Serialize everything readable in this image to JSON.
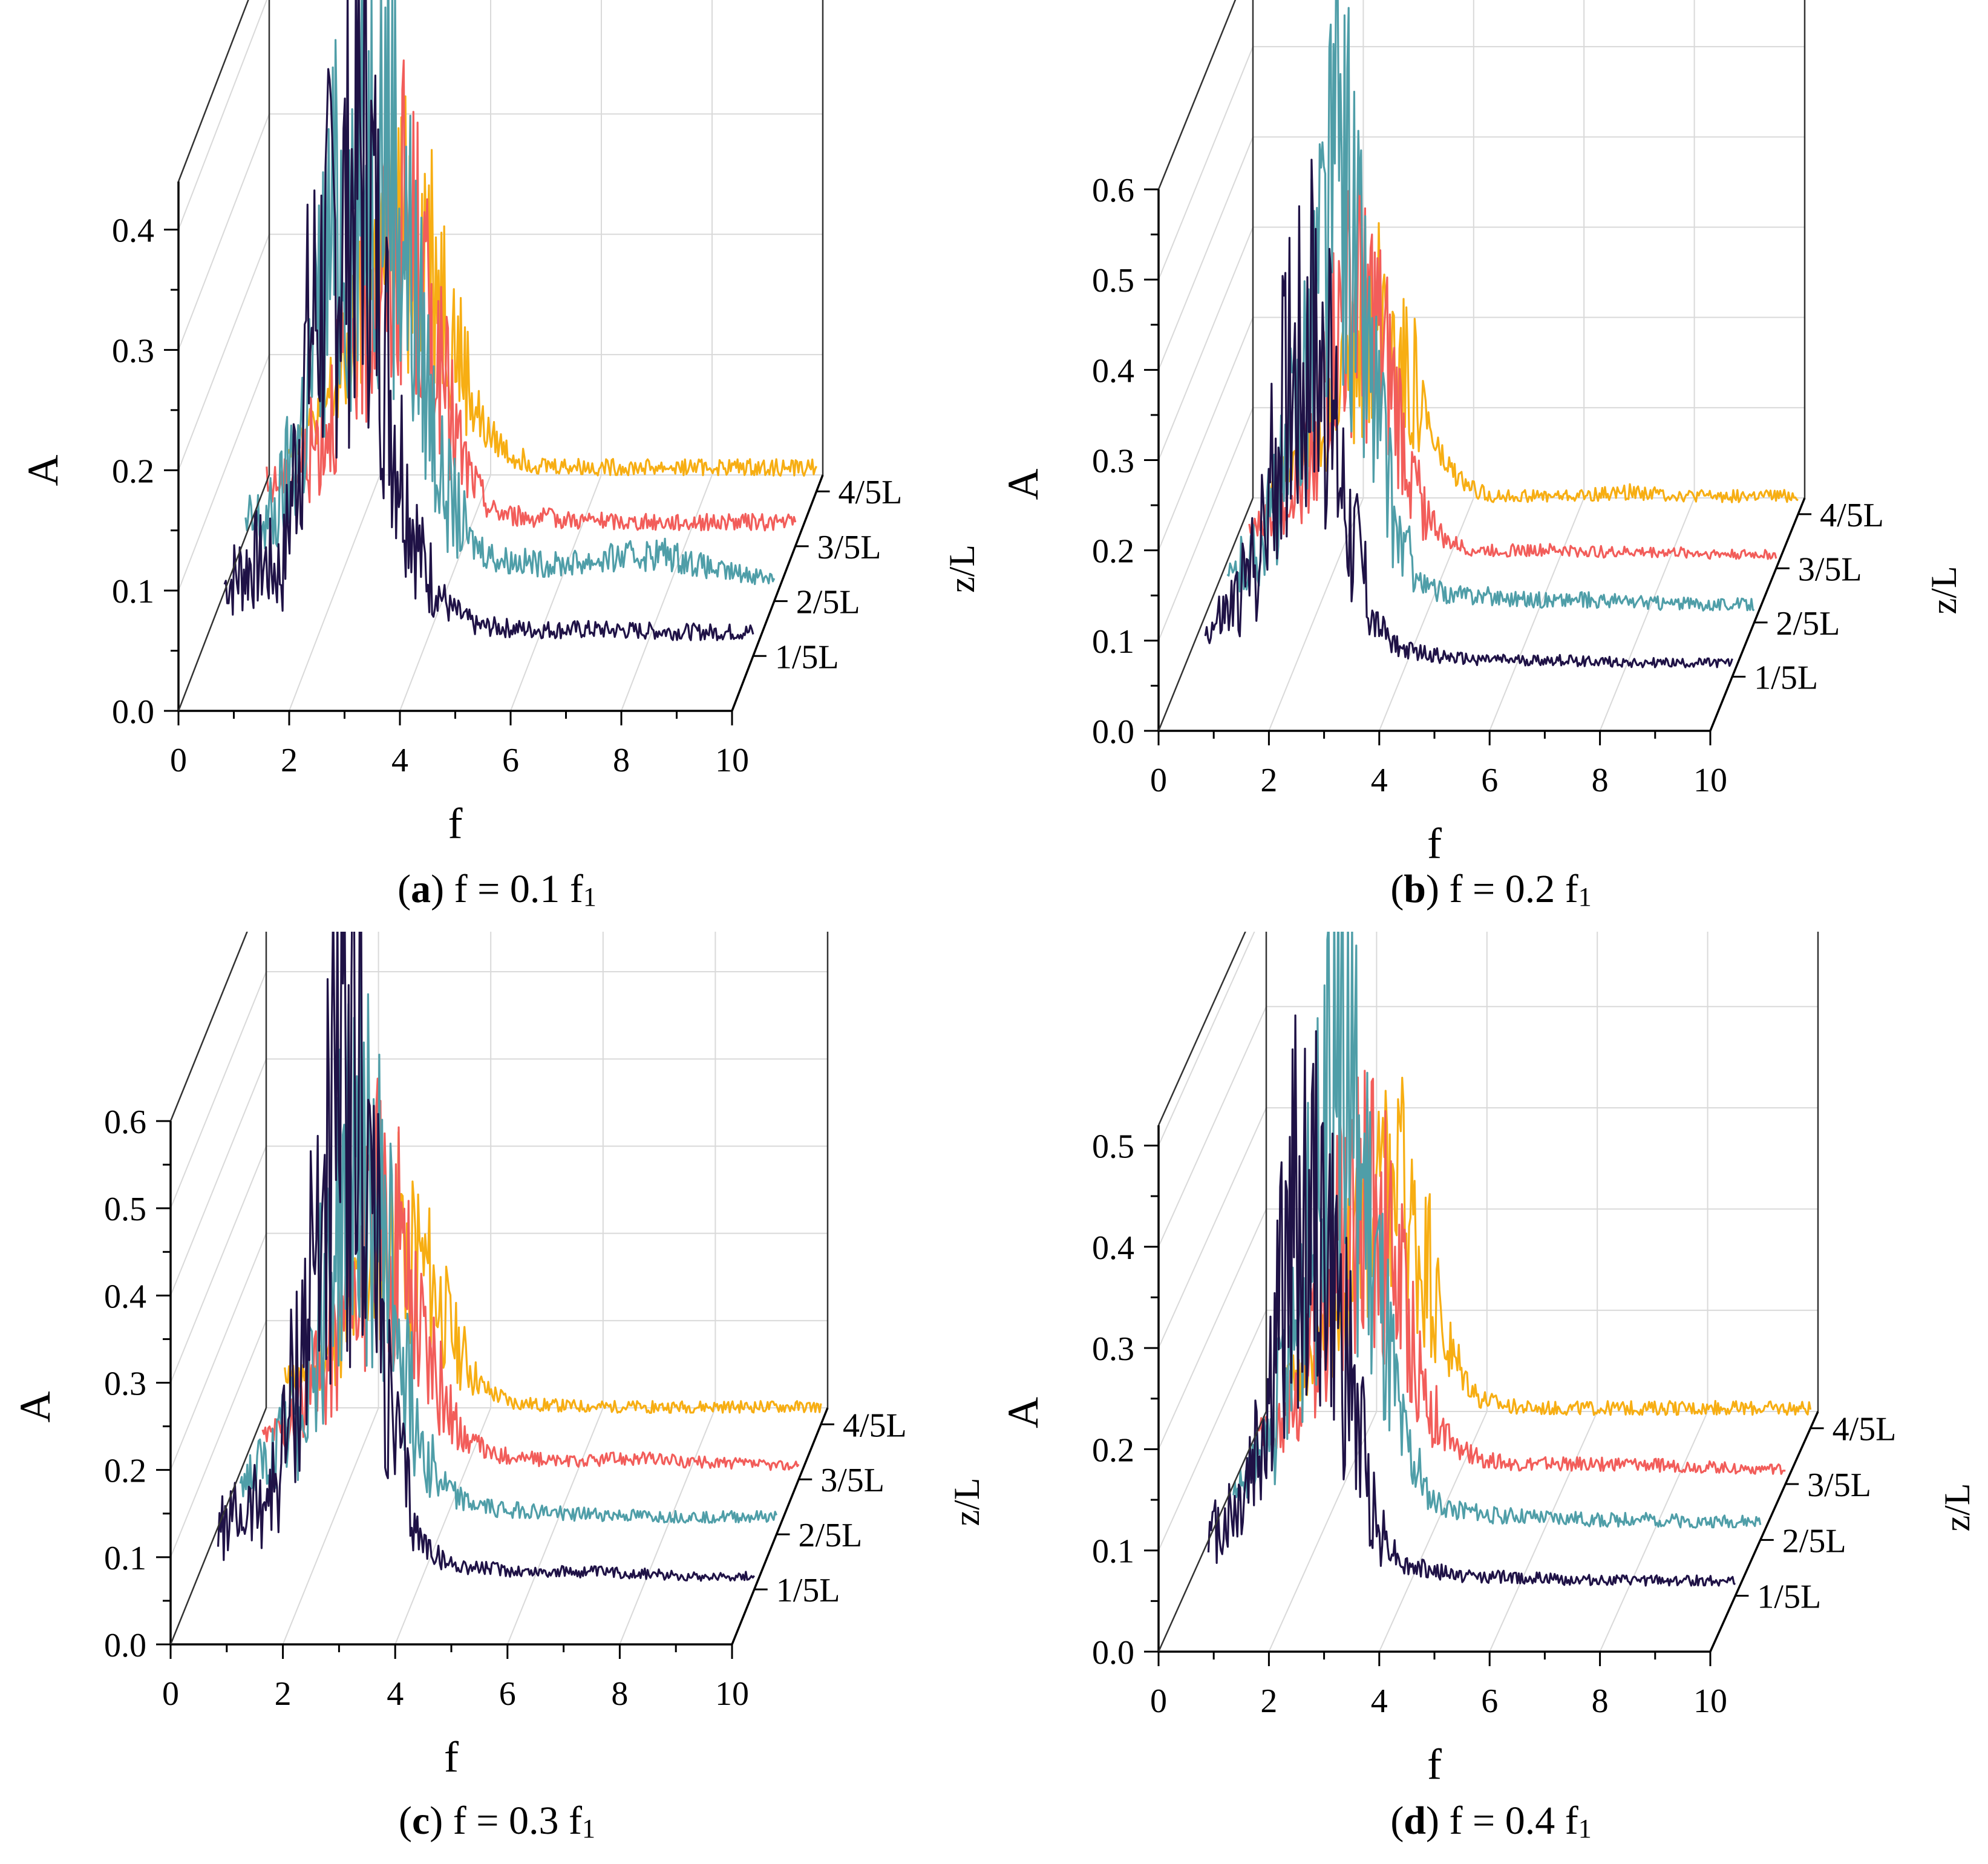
{
  "figure": {
    "panels": [
      {
        "letter": "a",
        "text": "f = 0.1 f",
        "sub": "1"
      },
      {
        "letter": "b",
        "text": "f = 0.2 f",
        "sub": "1"
      },
      {
        "letter": "c",
        "text": "f = 0.3 f",
        "sub": "1"
      },
      {
        "letter": "d",
        "text": "f = 0.4 f",
        "sub": "1"
      }
    ]
  },
  "chart_data": [
    {
      "type": "line",
      "title": "(a) f = 0.1 f1",
      "xlabel": "f",
      "ylabel": "A",
      "zlabel": "z/L",
      "xlim": [
        0,
        10
      ],
      "ylim": [
        0,
        0.44
      ],
      "x_ticks": [
        "0",
        "2",
        "4",
        "6",
        "8",
        "10"
      ],
      "y_ticks": [
        "0.0",
        "0.1",
        "0.2",
        "0.3",
        "0.4"
      ],
      "y_tick_values": [
        0,
        0.1,
        0.2,
        0.3,
        0.4
      ],
      "series": [
        {
          "name": "1/5L",
          "color": "#1f1246",
          "x": [
            0.5,
            1.0,
            1.5,
            2.0,
            2.5,
            3.0,
            3.5,
            4.0,
            4.5,
            5,
            6,
            7,
            8,
            9,
            10
          ],
          "values": [
            0.06,
            0.08,
            0.07,
            0.27,
            0.35,
            0.42,
            0.2,
            0.08,
            0.04,
            0.025,
            0.022,
            0.022,
            0.021,
            0.02,
            0.02
          ]
        },
        {
          "name": "2/5L",
          "color": "#4f9ea8",
          "x": [
            0.5,
            1.0,
            1.5,
            2.0,
            2.5,
            3.0,
            3.5,
            4.0,
            4.5,
            5,
            6,
            7,
            8,
            9,
            10
          ],
          "values": [
            0.06,
            0.07,
            0.15,
            0.3,
            0.35,
            0.41,
            0.25,
            0.1,
            0.05,
            0.035,
            0.03,
            0.035,
            0.04,
            0.025,
            0.02
          ]
        },
        {
          "name": "3/5L",
          "color": "#f25d5a",
          "x": [
            0.5,
            1.0,
            1.5,
            2.0,
            2.5,
            3.0,
            3.5,
            4.0,
            4.5,
            5,
            6,
            7,
            8,
            9,
            10
          ],
          "values": [
            0.05,
            0.06,
            0.1,
            0.18,
            0.24,
            0.27,
            0.16,
            0.07,
            0.03,
            0.025,
            0.022,
            0.02,
            0.02,
            0.02,
            0.02
          ]
        },
        {
          "name": "4/5L",
          "color": "#f7ae13",
          "x": [
            0.5,
            1.0,
            1.5,
            2.0,
            2.5,
            3.0,
            3.5,
            4.0,
            4.5,
            5,
            6,
            7,
            8,
            9,
            10
          ],
          "values": [
            0.04,
            0.06,
            0.1,
            0.17,
            0.22,
            0.21,
            0.12,
            0.05,
            0.03,
            0.022,
            0.02,
            0.02,
            0.02,
            0.02,
            0.02
          ]
        }
      ]
    },
    {
      "type": "line",
      "title": "(b) f = 0.2 f1",
      "xlabel": "f",
      "ylabel": "A",
      "zlabel": "z/L",
      "xlim": [
        0,
        10
      ],
      "ylim": [
        0,
        0.6
      ],
      "x_ticks": [
        "0",
        "2",
        "4",
        "6",
        "8",
        "10"
      ],
      "y_ticks": [
        "0.0",
        "0.1",
        "0.2",
        "0.3",
        "0.4",
        "0.5",
        "0.6"
      ],
      "y_tick_values": [
        0,
        0.1,
        0.2,
        0.3,
        0.4,
        0.5,
        0.6
      ],
      "series": [
        {
          "name": "1/5L",
          "color": "#1f1246",
          "x": [
            0.5,
            1.0,
            1.5,
            2.0,
            2.5,
            3.0,
            3.5,
            4.0,
            4.5,
            5,
            6,
            7,
            8,
            9,
            10
          ],
          "values": [
            0.05,
            0.08,
            0.15,
            0.36,
            0.38,
            0.2,
            0.06,
            0.03,
            0.025,
            0.02,
            0.018,
            0.018,
            0.016,
            0.015,
            0.015
          ]
        },
        {
          "name": "2/5L",
          "color": "#4f9ea8",
          "x": [
            0.5,
            1.0,
            1.5,
            2.0,
            2.5,
            3.0,
            3.5,
            4.0,
            4.5,
            5,
            6,
            7,
            8,
            9,
            10
          ],
          "values": [
            0.05,
            0.08,
            0.16,
            0.35,
            0.52,
            0.3,
            0.1,
            0.04,
            0.03,
            0.03,
            0.025,
            0.025,
            0.022,
            0.02,
            0.02
          ]
        },
        {
          "name": "3/5L",
          "color": "#f25d5a",
          "x": [
            0.5,
            1.0,
            1.5,
            2.0,
            2.5,
            3.0,
            3.5,
            4.0,
            4.5,
            5,
            6,
            7,
            8,
            9,
            10
          ],
          "values": [
            0.04,
            0.07,
            0.12,
            0.24,
            0.3,
            0.2,
            0.08,
            0.03,
            0.02,
            0.02,
            0.02,
            0.018,
            0.018,
            0.016,
            0.015
          ]
        },
        {
          "name": "4/5L",
          "color": "#f7ae13",
          "x": [
            0.5,
            1.0,
            1.5,
            2.0,
            2.5,
            3.0,
            3.5,
            4.0,
            4.5,
            5,
            6,
            7,
            8,
            9,
            10
          ],
          "values": [
            0.04,
            0.06,
            0.1,
            0.18,
            0.22,
            0.15,
            0.06,
            0.03,
            0.02,
            0.02,
            0.02,
            0.025,
            0.02,
            0.02,
            0.02
          ]
        }
      ]
    },
    {
      "type": "line",
      "title": "(c) f = 0.3 f1",
      "xlabel": "f",
      "ylabel": "A",
      "zlabel": "z/L",
      "xlim": [
        0,
        10
      ],
      "ylim": [
        0,
        0.6
      ],
      "x_ticks": [
        "0",
        "2",
        "4",
        "6",
        "8",
        "10"
      ],
      "y_ticks": [
        "0.0",
        "0.1",
        "0.2",
        "0.3",
        "0.4",
        "0.5",
        "0.6"
      ],
      "y_tick_values": [
        0,
        0.1,
        0.2,
        0.3,
        0.4,
        0.5,
        0.6
      ],
      "series": [
        {
          "name": "1/5L",
          "color": "#1f1246",
          "x": [
            0.5,
            1.0,
            1.5,
            2.0,
            2.5,
            3.0,
            3.5,
            4.0,
            4.5,
            5,
            6,
            7,
            8,
            9,
            10
          ],
          "values": [
            0.07,
            0.09,
            0.12,
            0.3,
            0.53,
            0.58,
            0.2,
            0.06,
            0.03,
            0.025,
            0.02,
            0.02,
            0.018,
            0.015,
            0.015
          ]
        },
        {
          "name": "2/5L",
          "color": "#4f9ea8",
          "x": [
            0.5,
            1.0,
            1.5,
            2.0,
            2.5,
            3.0,
            3.5,
            4.0,
            4.5,
            5,
            6,
            7,
            8,
            9,
            10
          ],
          "values": [
            0.06,
            0.08,
            0.14,
            0.3,
            0.45,
            0.35,
            0.15,
            0.06,
            0.035,
            0.03,
            0.025,
            0.022,
            0.02,
            0.02,
            0.02
          ]
        },
        {
          "name": "3/5L",
          "color": "#f25d5a",
          "x": [
            0.5,
            1.0,
            1.5,
            2.0,
            2.5,
            3.0,
            3.5,
            4.0,
            4.5,
            5,
            6,
            7,
            8,
            9,
            10
          ],
          "values": [
            0.05,
            0.07,
            0.12,
            0.22,
            0.3,
            0.25,
            0.12,
            0.05,
            0.03,
            0.025,
            0.02,
            0.025,
            0.02,
            0.018,
            0.015
          ]
        },
        {
          "name": "4/5L",
          "color": "#f7ae13",
          "x": [
            0.5,
            1.0,
            1.5,
            2.0,
            2.5,
            3.0,
            3.5,
            4.0,
            4.5,
            5,
            6,
            7,
            8,
            9,
            10
          ],
          "values": [
            0.05,
            0.06,
            0.1,
            0.18,
            0.22,
            0.17,
            0.09,
            0.04,
            0.025,
            0.022,
            0.02,
            0.02,
            0.02,
            0.02,
            0.02
          ]
        }
      ]
    },
    {
      "type": "line",
      "title": "(d) f = 0.4 f1",
      "xlabel": "f",
      "ylabel": "A",
      "zlabel": "z/L",
      "xlim": [
        0,
        10
      ],
      "ylim": [
        0,
        0.52
      ],
      "x_ticks": [
        "0",
        "2",
        "4",
        "6",
        "8",
        "10"
      ],
      "y_ticks": [
        "0.0",
        "0.1",
        "0.2",
        "0.3",
        "0.4",
        "0.5"
      ],
      "y_tick_values": [
        0,
        0.1,
        0.2,
        0.3,
        0.4,
        0.5
      ],
      "series": [
        {
          "name": "1/5L",
          "color": "#1f1246",
          "x": [
            0.5,
            1.0,
            1.5,
            2.0,
            2.5,
            3.0,
            3.5,
            4.0,
            4.5,
            5,
            6,
            7,
            8,
            9,
            10
          ],
          "values": [
            0.06,
            0.09,
            0.18,
            0.38,
            0.36,
            0.22,
            0.07,
            0.03,
            0.025,
            0.02,
            0.018,
            0.016,
            0.015,
            0.015,
            0.015
          ]
        },
        {
          "name": "2/5L",
          "color": "#4f9ea8",
          "x": [
            0.5,
            1.0,
            1.5,
            2.0,
            2.5,
            3.0,
            3.5,
            4.0,
            4.5,
            5,
            6,
            7,
            8,
            9,
            10
          ],
          "values": [
            0.05,
            0.08,
            0.18,
            0.35,
            0.48,
            0.28,
            0.1,
            0.04,
            0.03,
            0.025,
            0.022,
            0.02,
            0.02,
            0.018,
            0.018
          ]
        },
        {
          "name": "3/5L",
          "color": "#f25d5a",
          "x": [
            0.5,
            1.0,
            1.5,
            2.0,
            2.5,
            3.0,
            3.5,
            4.0,
            4.5,
            5,
            6,
            7,
            8,
            9,
            10
          ],
          "values": [
            0.05,
            0.07,
            0.14,
            0.25,
            0.3,
            0.2,
            0.08,
            0.035,
            0.025,
            0.02,
            0.02,
            0.02,
            0.018,
            0.016,
            0.015
          ]
        },
        {
          "name": "4/5L",
          "color": "#f7ae13",
          "x": [
            0.5,
            1.0,
            1.5,
            2.0,
            2.5,
            3.0,
            3.5,
            4.0,
            4.5,
            5,
            6,
            7,
            8,
            9,
            10
          ],
          "values": [
            0.05,
            0.07,
            0.13,
            0.22,
            0.24,
            0.17,
            0.07,
            0.03,
            0.022,
            0.02,
            0.02,
            0.02,
            0.02,
            0.02,
            0.02
          ]
        }
      ]
    }
  ]
}
